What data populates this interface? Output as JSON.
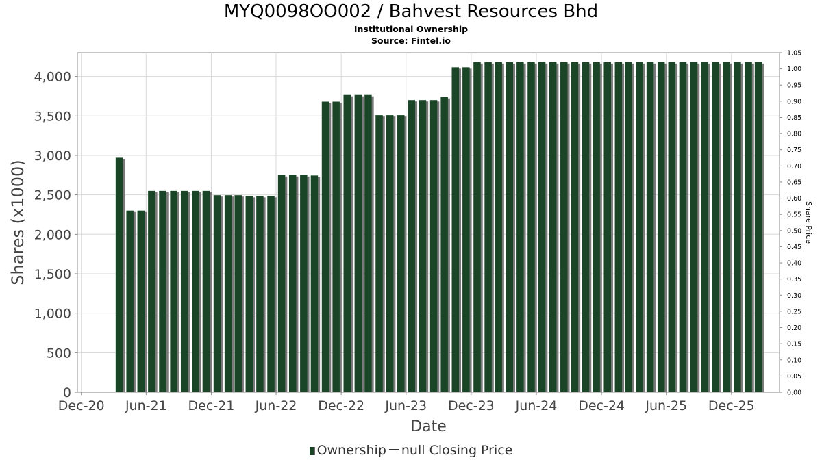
{
  "header": {
    "title": "MYQ0098OO002 / Bahvest Resources Bhd",
    "subtitle": "Institutional Ownership",
    "source": "Source: Fintel.io"
  },
  "legend": {
    "items": [
      "Ownership",
      "null Closing Price"
    ]
  },
  "colors": {
    "bar": "#1a4526",
    "bar_shadow": "#7a7a7a",
    "grid": "#d8d8d8"
  },
  "chart_data": {
    "type": "bar",
    "title": "MYQ0098OO002 / Bahvest Resources Bhd",
    "xlabel": "Date",
    "ylabel": "Shares (x1000)",
    "y2label": "Share Price",
    "ylim": [
      0,
      4300
    ],
    "y2lim": [
      0,
      1.05
    ],
    "yticks": [
      0,
      500,
      1000,
      1500,
      2000,
      2500,
      3000,
      3500,
      4000
    ],
    "ytick_labels": [
      "0",
      "500",
      "1,000",
      "1,500",
      "2,000",
      "2,500",
      "3,000",
      "3,500",
      "4,000"
    ],
    "y2ticks": [
      0.0,
      0.05,
      0.1,
      0.15,
      0.2,
      0.25,
      0.3,
      0.35,
      0.4,
      0.45,
      0.5,
      0.55,
      0.6,
      0.65,
      0.7,
      0.75,
      0.8,
      0.85,
      0.9,
      0.95,
      1.0,
      1.05
    ],
    "y2tick_labels": [
      "0.00",
      "0.05",
      "0.10",
      "0.15",
      "0.20",
      "0.25",
      "0.30",
      "0.35",
      "0.40",
      "0.45",
      "0.50",
      "0.55",
      "0.60",
      "0.65",
      "0.70",
      "0.75",
      "0.80",
      "0.85",
      "0.90",
      "0.95",
      "1.00",
      "1.05"
    ],
    "xlim": [
      "2020-11-20",
      "2026-04-15"
    ],
    "xticks": [
      "2020-12-01",
      "2021-06-01",
      "2021-12-01",
      "2022-06-01",
      "2022-12-01",
      "2023-06-01",
      "2023-12-01",
      "2024-06-01",
      "2024-12-01",
      "2025-06-01",
      "2025-12-01"
    ],
    "xtick_labels": [
      "Dec-20",
      "Jun-21",
      "Dec-21",
      "Jun-22",
      "Dec-22",
      "Jun-23",
      "Dec-23",
      "Jun-24",
      "Dec-24",
      "Jun-25",
      "Dec-25"
    ],
    "grid": true,
    "legend_position": "bottom",
    "series": [
      {
        "name": "Ownership",
        "x": [
          "2021-03-31",
          "2021-04-30",
          "2021-05-31",
          "2021-06-30",
          "2021-07-31",
          "2021-08-31",
          "2021-09-30",
          "2021-10-31",
          "2021-11-30",
          "2021-12-31",
          "2022-01-31",
          "2022-02-28",
          "2022-03-31",
          "2022-04-30",
          "2022-05-31",
          "2022-06-30",
          "2022-07-31",
          "2022-08-31",
          "2022-09-30",
          "2022-10-31",
          "2022-11-30",
          "2022-12-31",
          "2023-01-31",
          "2023-02-28",
          "2023-03-31",
          "2023-04-30",
          "2023-05-31",
          "2023-06-30",
          "2023-07-31",
          "2023-08-31",
          "2023-09-30",
          "2023-10-31",
          "2023-11-30",
          "2023-12-31",
          "2024-01-31",
          "2024-02-29",
          "2024-03-31",
          "2024-04-30",
          "2024-05-31",
          "2024-06-30",
          "2024-07-31",
          "2024-08-31",
          "2024-09-30",
          "2024-10-31",
          "2024-11-30",
          "2024-12-31",
          "2025-01-31",
          "2025-02-28",
          "2025-03-31",
          "2025-04-30",
          "2025-05-31",
          "2025-06-30",
          "2025-07-31",
          "2025-08-31",
          "2025-09-30",
          "2025-10-31",
          "2025-11-30",
          "2025-12-31",
          "2026-01-31",
          "2026-02-28"
        ],
        "values": [
          2970,
          2300,
          2300,
          2550,
          2550,
          2550,
          2550,
          2550,
          2550,
          2495,
          2495,
          2495,
          2485,
          2485,
          2485,
          2750,
          2750,
          2750,
          2745,
          3680,
          3680,
          3765,
          3765,
          3765,
          3510,
          3510,
          3510,
          3700,
          3700,
          3700,
          3740,
          4115,
          4115,
          4180,
          4180,
          4180,
          4180,
          4180,
          4180,
          4180,
          4180,
          4180,
          4180,
          4180,
          4180,
          4180,
          4180,
          4180,
          4180,
          4180,
          4180,
          4180,
          4180,
          4180,
          4180,
          4180,
          4180,
          4180,
          4180,
          4180
        ]
      }
    ]
  }
}
